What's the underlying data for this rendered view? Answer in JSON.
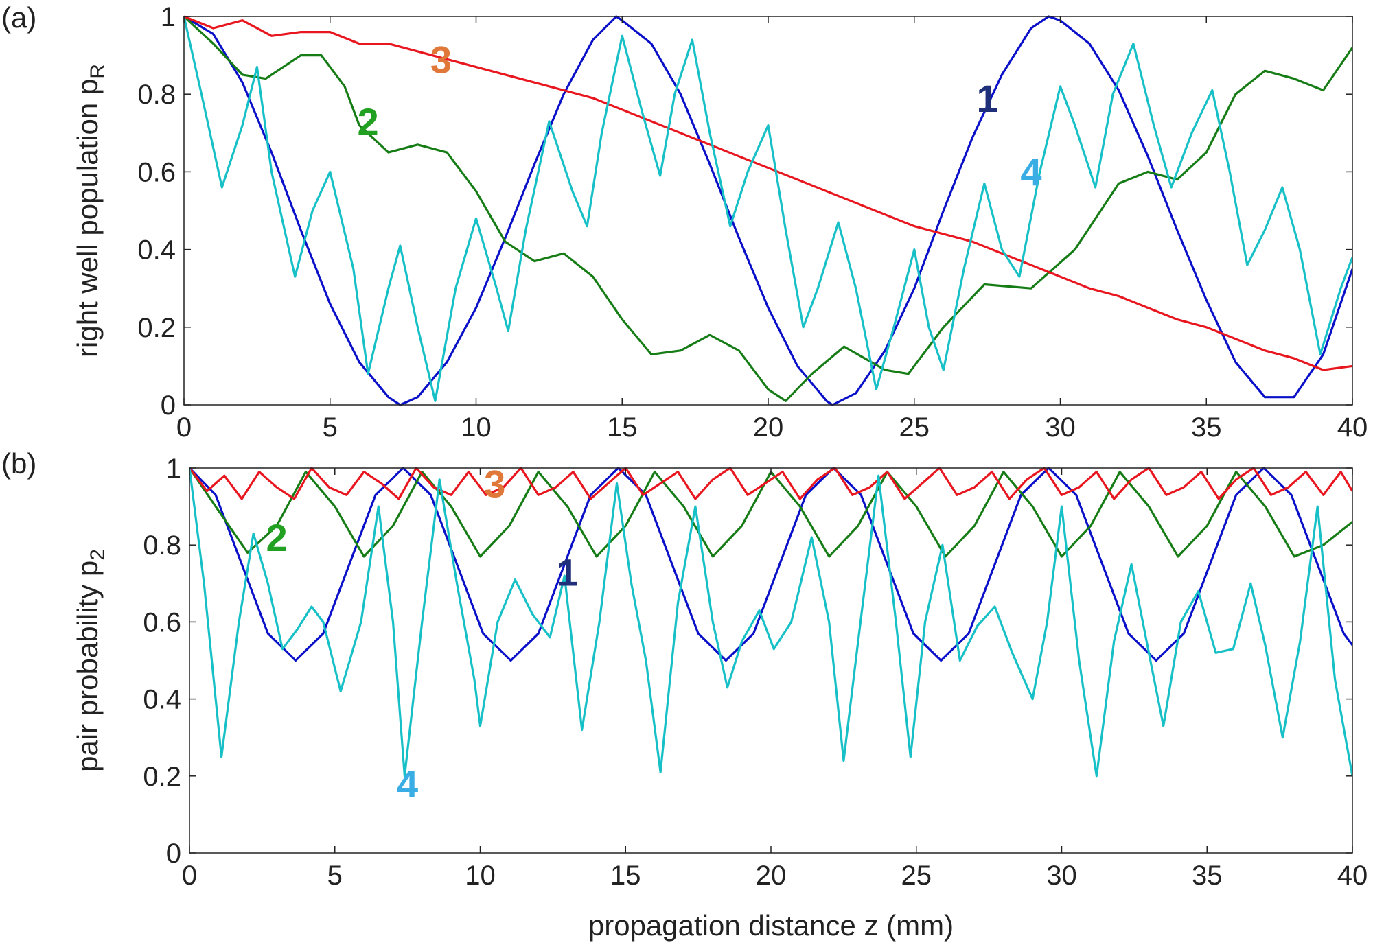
{
  "chart_data": [
    {
      "type": "line",
      "panel_label": "(a)",
      "ylabel": "right well population p",
      "ylabel_sub": "R",
      "xlabel": "",
      "xlim": [
        0,
        40
      ],
      "ylim": [
        0,
        1
      ],
      "xticks": [
        "0",
        "5",
        "10",
        "15",
        "20",
        "25",
        "30",
        "35",
        "40"
      ],
      "yticks": [
        "0",
        "0.2",
        "0.4",
        "0.6",
        "0.8",
        "1"
      ],
      "series": [
        {
          "name": "1",
          "label": "1",
          "color": "#0a10c8",
          "label_color": "#1f2f7a",
          "label_x": 27.5,
          "label_y": 0.79,
          "x": [
            0,
            1,
            2,
            3,
            4,
            5,
            6,
            7,
            7.4,
            8,
            9,
            10,
            11,
            12,
            13,
            14,
            14.8,
            15,
            16,
            17,
            18,
            19,
            20,
            21,
            22,
            22.2,
            23,
            24,
            25,
            26,
            27,
            28,
            29,
            29.6,
            30,
            31,
            32,
            33,
            34,
            35,
            36,
            37,
            38,
            39,
            40
          ],
          "y": [
            1,
            0.955,
            0.83,
            0.65,
            0.45,
            0.26,
            0.11,
            0.02,
            0,
            0.02,
            0.11,
            0.25,
            0.43,
            0.62,
            0.8,
            0.94,
            1,
            0.99,
            0.93,
            0.8,
            0.62,
            0.43,
            0.25,
            0.1,
            0.01,
            0,
            0.03,
            0.14,
            0.3,
            0.5,
            0.69,
            0.85,
            0.97,
            1,
            0.99,
            0.93,
            0.81,
            0.64,
            0.45,
            0.27,
            0.11,
            0.02,
            0.02,
            0.13,
            0.35
          ]
        },
        {
          "name": "2",
          "label": "2",
          "color": "#167d16",
          "label_color": "#22a022",
          "label_x": 6.3,
          "label_y": 0.73,
          "x": [
            0,
            1,
            2,
            2.8,
            4,
            4.7,
            5.5,
            6,
            7,
            8,
            9,
            10,
            11,
            12,
            13,
            14,
            15,
            16,
            17,
            18,
            19,
            20,
            20.6,
            21.5,
            22.6,
            24,
            24.8,
            26,
            27.4,
            29,
            30.5,
            32,
            33,
            34,
            35,
            36,
            37,
            38,
            39,
            40
          ],
          "y": [
            1,
            0.93,
            0.85,
            0.84,
            0.9,
            0.9,
            0.82,
            0.72,
            0.65,
            0.67,
            0.65,
            0.55,
            0.42,
            0.37,
            0.39,
            0.33,
            0.22,
            0.13,
            0.14,
            0.18,
            0.14,
            0.04,
            0.01,
            0.08,
            0.15,
            0.09,
            0.08,
            0.2,
            0.31,
            0.3,
            0.4,
            0.57,
            0.6,
            0.58,
            0.65,
            0.8,
            0.86,
            0.84,
            0.81,
            0.92
          ]
        },
        {
          "name": "3",
          "label": "3",
          "color": "#e8161e",
          "label_color": "#e0783a",
          "label_x": 8.8,
          "label_y": 0.89,
          "x": [
            0,
            1,
            2,
            3,
            4,
            5,
            6,
            7,
            8,
            9,
            10,
            11,
            12,
            13,
            14,
            15,
            16,
            17,
            18,
            19,
            20,
            21,
            22,
            23,
            24,
            25,
            26,
            27,
            28,
            29,
            30,
            31,
            32,
            33,
            34,
            35,
            36,
            37,
            38,
            39,
            40
          ],
          "y": [
            1,
            0.97,
            0.99,
            0.95,
            0.96,
            0.96,
            0.93,
            0.93,
            0.91,
            0.89,
            0.87,
            0.85,
            0.83,
            0.81,
            0.79,
            0.76,
            0.73,
            0.7,
            0.67,
            0.64,
            0.61,
            0.58,
            0.55,
            0.52,
            0.49,
            0.46,
            0.44,
            0.42,
            0.39,
            0.36,
            0.33,
            0.3,
            0.28,
            0.25,
            0.22,
            0.2,
            0.17,
            0.14,
            0.12,
            0.09,
            0.1
          ]
        },
        {
          "name": "4",
          "label": "4",
          "color": "#17c0c6",
          "label_color": "#3aaee4",
          "label_x": 29,
          "label_y": 0.6,
          "x": [
            0,
            0.6,
            1.3,
            2,
            2.5,
            3,
            3.8,
            4.4,
            5,
            5.8,
            6.3,
            7,
            7.4,
            8,
            8.6,
            9.3,
            10,
            10.7,
            11.1,
            11.7,
            12.5,
            13.3,
            13.8,
            14.3,
            15,
            15.7,
            16.3,
            16.8,
            17.4,
            18,
            18.7,
            19.3,
            20,
            20.6,
            21.2,
            21.7,
            22.4,
            23,
            23.7,
            24.3,
            25,
            25.5,
            26,
            26.7,
            27.4,
            28,
            28.6,
            29.3,
            30,
            30.5,
            31.2,
            31.8,
            32.5,
            33.2,
            33.8,
            34.5,
            35.2,
            35.8,
            36.4,
            37,
            37.6,
            38.2,
            38.9,
            39.6,
            40
          ],
          "y": [
            1,
            0.8,
            0.56,
            0.72,
            0.87,
            0.6,
            0.33,
            0.5,
            0.6,
            0.35,
            0.08,
            0.3,
            0.41,
            0.2,
            0.01,
            0.3,
            0.48,
            0.3,
            0.19,
            0.45,
            0.73,
            0.55,
            0.46,
            0.7,
            0.95,
            0.75,
            0.59,
            0.8,
            0.94,
            0.7,
            0.46,
            0.6,
            0.72,
            0.45,
            0.2,
            0.3,
            0.47,
            0.3,
            0.04,
            0.2,
            0.4,
            0.2,
            0.09,
            0.35,
            0.57,
            0.4,
            0.33,
            0.6,
            0.82,
            0.72,
            0.56,
            0.8,
            0.93,
            0.72,
            0.56,
            0.7,
            0.81,
            0.6,
            0.36,
            0.45,
            0.56,
            0.4,
            0.13,
            0.3,
            0.38
          ]
        }
      ]
    },
    {
      "type": "line",
      "panel_label": "(b)",
      "ylabel": "pair probability p",
      "ylabel_sub": "2",
      "xlabel": "propagation distance z (mm)",
      "xlim": [
        0,
        40
      ],
      "ylim": [
        0,
        1
      ],
      "xticks": [
        "0",
        "5",
        "10",
        "15",
        "20",
        "25",
        "30",
        "35",
        "40"
      ],
      "yticks": [
        "0",
        "0.2",
        "0.4",
        "0.6",
        "0.8",
        "1"
      ],
      "series": [
        {
          "name": "1",
          "label": "1",
          "color": "#0a10c8",
          "label_color": "#1f2f7a",
          "label_x": 13,
          "label_y": 0.73,
          "x": [
            0,
            0.9,
            1.8,
            2.7,
            3.65,
            4.6,
            5.5,
            6.4,
            7.35,
            8.3,
            9.2,
            10.1,
            11.05,
            12,
            12.9,
            13.8,
            14.75,
            15.7,
            16.6,
            17.5,
            18.45,
            19.4,
            20.3,
            21.2,
            22.15,
            23.1,
            24,
            24.9,
            25.85,
            26.8,
            27.7,
            28.6,
            29.55,
            30.5,
            31.4,
            32.3,
            33.25,
            34.2,
            35.1,
            36,
            36.95,
            37.9,
            38.8,
            39.7,
            40
          ],
          "y": [
            1,
            0.93,
            0.75,
            0.57,
            0.5,
            0.57,
            0.75,
            0.93,
            1,
            0.93,
            0.75,
            0.57,
            0.5,
            0.57,
            0.75,
            0.93,
            1,
            0.93,
            0.75,
            0.57,
            0.5,
            0.57,
            0.75,
            0.93,
            1,
            0.93,
            0.75,
            0.57,
            0.5,
            0.57,
            0.75,
            0.93,
            1,
            0.93,
            0.75,
            0.57,
            0.5,
            0.57,
            0.75,
            0.93,
            1,
            0.93,
            0.75,
            0.57,
            0.54
          ]
        },
        {
          "name": "2",
          "label": "2",
          "color": "#167d16",
          "label_color": "#22a022",
          "label_x": 3,
          "label_y": 0.82,
          "x": [
            0,
            0.9,
            2,
            3,
            4,
            5,
            6,
            7,
            8,
            9,
            10,
            11,
            12,
            13,
            14,
            15,
            16,
            17,
            18,
            19,
            20,
            21,
            22,
            23,
            24,
            25,
            26,
            27,
            28,
            29,
            30,
            31,
            32,
            33,
            34,
            35,
            36,
            37,
            38,
            39,
            40
          ],
          "y": [
            1,
            0.9,
            0.78,
            0.85,
            0.99,
            0.9,
            0.77,
            0.85,
            0.99,
            0.9,
            0.77,
            0.85,
            0.99,
            0.9,
            0.77,
            0.85,
            0.99,
            0.9,
            0.77,
            0.85,
            0.99,
            0.9,
            0.77,
            0.85,
            0.99,
            0.9,
            0.77,
            0.85,
            0.99,
            0.9,
            0.77,
            0.85,
            0.99,
            0.9,
            0.77,
            0.85,
            0.99,
            0.9,
            0.77,
            0.8,
            0.86
          ]
        },
        {
          "name": "3",
          "label": "3",
          "color": "#e8161e",
          "label_color": "#e0783a",
          "label_x": 10.5,
          "label_y": 0.96,
          "x": [
            0,
            0.6,
            1.2,
            1.8,
            2.4,
            3,
            3.6,
            4.2,
            4.8,
            5.4,
            6,
            6.6,
            7.2,
            7.8,
            8.4,
            9,
            9.6,
            10.2,
            10.8,
            11.4,
            12,
            12.6,
            13.2,
            13.8,
            14.4,
            15,
            15.6,
            16.2,
            16.8,
            17.4,
            18,
            18.6,
            19.2,
            19.8,
            20.4,
            21,
            21.6,
            22.2,
            22.8,
            23.4,
            24,
            24.6,
            25.2,
            25.8,
            26.4,
            27,
            27.6,
            28.2,
            28.8,
            29.4,
            30,
            30.6,
            31.2,
            31.8,
            32.4,
            33,
            33.6,
            34.2,
            34.8,
            35.4,
            36,
            36.6,
            37.2,
            37.8,
            38.4,
            39,
            39.6,
            40
          ],
          "y": [
            1,
            0.94,
            0.98,
            0.92,
            0.99,
            0.95,
            0.92,
            1,
            0.95,
            0.93,
            0.99,
            0.96,
            0.92,
            1,
            0.95,
            0.93,
            0.99,
            0.93,
            0.95,
            1,
            0.93,
            0.95,
            0.99,
            0.92,
            0.96,
            1,
            0.93,
            0.96,
            0.99,
            0.92,
            0.97,
            1,
            0.93,
            0.96,
            0.99,
            0.92,
            0.97,
            1,
            0.93,
            0.95,
            0.99,
            0.92,
            0.96,
            1,
            0.93,
            0.95,
            0.99,
            0.92,
            0.97,
            1,
            0.93,
            0.95,
            0.99,
            0.92,
            0.97,
            1,
            0.93,
            0.95,
            0.99,
            0.92,
            0.97,
            1,
            0.93,
            0.95,
            0.99,
            0.93,
            0.99,
            0.94
          ]
        },
        {
          "name": "4",
          "label": "4",
          "color": "#17c0c6",
          "label_color": "#3aaee4",
          "label_x": 7.5,
          "label_y": 0.18,
          "x": [
            0,
            0.5,
            1.1,
            1.7,
            2.2,
            2.7,
            3.2,
            3.7,
            4.2,
            4.6,
            5.2,
            5.9,
            6.5,
            7,
            7.4,
            8,
            8.6,
            9.2,
            9.8,
            10,
            10.6,
            11.2,
            11.8,
            12.4,
            12.9,
            13.5,
            14.1,
            14.7,
            15.2,
            15.7,
            16.2,
            16.8,
            17.4,
            18,
            18.5,
            19,
            19.6,
            20.1,
            20.7,
            21.4,
            22,
            22.5,
            23,
            23.7,
            24.3,
            24.8,
            25.3,
            25.9,
            26.5,
            27.1,
            27.7,
            28.3,
            29,
            29.5,
            30,
            30.6,
            31.2,
            31.8,
            32.4,
            33,
            33.5,
            34.1,
            34.7,
            35.3,
            35.9,
            36.5,
            37,
            37.6,
            38.2,
            38.8,
            39.4,
            40
          ],
          "y": [
            1,
            0.7,
            0.25,
            0.6,
            0.83,
            0.7,
            0.53,
            0.58,
            0.64,
            0.6,
            0.42,
            0.6,
            0.9,
            0.6,
            0.2,
            0.6,
            0.97,
            0.7,
            0.45,
            0.33,
            0.6,
            0.71,
            0.62,
            0.56,
            0.72,
            0.32,
            0.6,
            0.96,
            0.7,
            0.5,
            0.21,
            0.65,
            0.9,
            0.6,
            0.43,
            0.55,
            0.63,
            0.53,
            0.6,
            0.82,
            0.6,
            0.24,
            0.55,
            0.98,
            0.6,
            0.25,
            0.6,
            0.8,
            0.5,
            0.59,
            0.64,
            0.52,
            0.4,
            0.6,
            0.9,
            0.5,
            0.2,
            0.55,
            0.75,
            0.52,
            0.33,
            0.6,
            0.68,
            0.52,
            0.53,
            0.7,
            0.54,
            0.3,
            0.55,
            0.9,
            0.45,
            0.2
          ]
        }
      ]
    }
  ]
}
